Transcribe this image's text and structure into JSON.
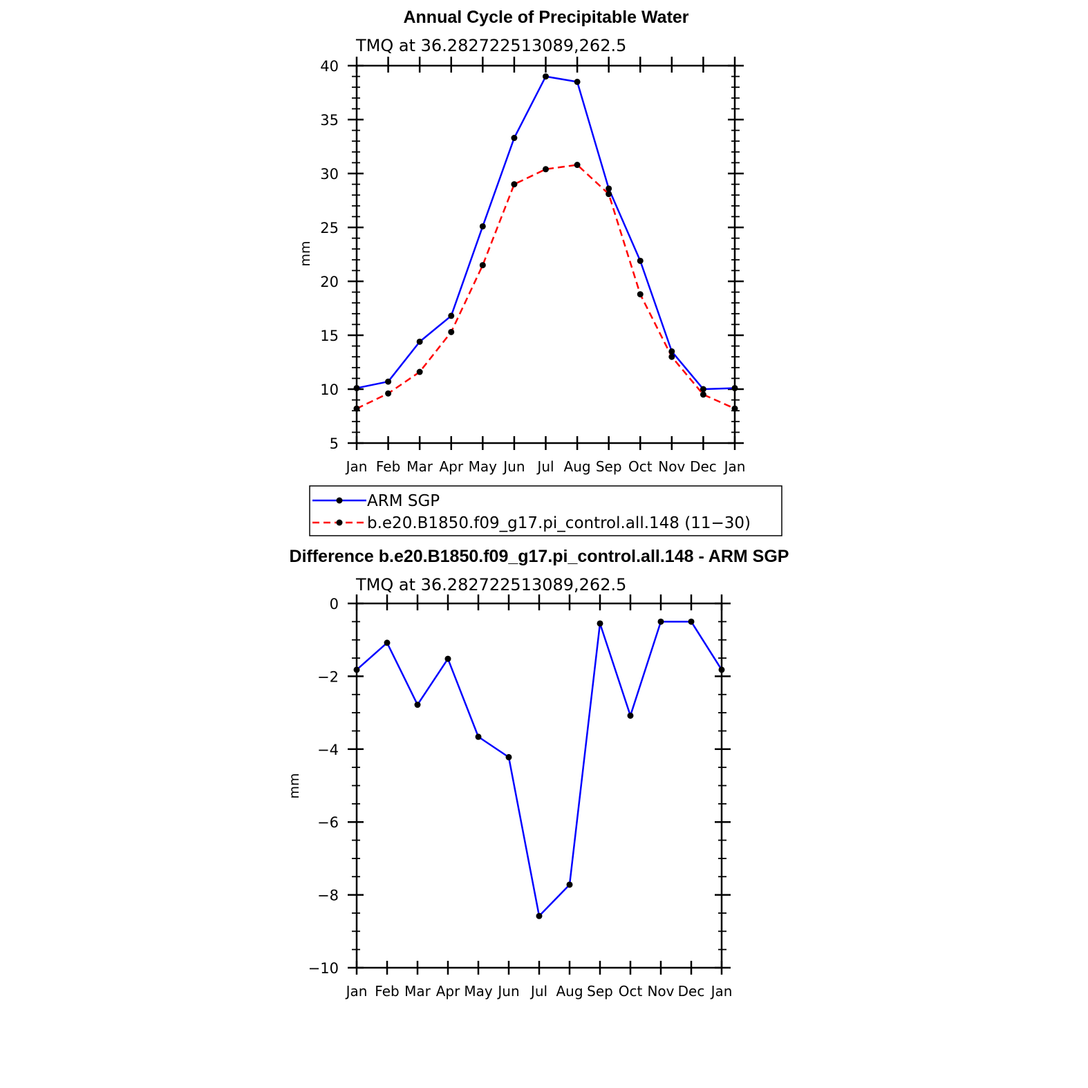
{
  "chart_data": [
    {
      "type": "line",
      "title": "Annual Cycle of Precipitable Water",
      "subtitle": "TMQ at 36.282722513089,262.5",
      "xlabel": "",
      "ylabel": "mm",
      "categories": [
        "Jan",
        "Feb",
        "Mar",
        "Apr",
        "May",
        "Jun",
        "Jul",
        "Aug",
        "Sep",
        "Oct",
        "Nov",
        "Dec",
        "Jan"
      ],
      "ylim": [
        5,
        40
      ],
      "yticks": [
        5,
        10,
        15,
        20,
        25,
        30,
        35,
        40
      ],
      "ytick_labels": [
        "5",
        "10",
        "15",
        "20",
        "25",
        "30",
        "35",
        "40"
      ],
      "series": [
        {
          "name": "ARM SGP",
          "color": "#0000ff",
          "dash": "solid",
          "values": [
            10.1,
            10.7,
            14.4,
            16.8,
            25.1,
            33.3,
            39.0,
            38.5,
            28.6,
            21.9,
            13.5,
            10.0,
            10.1
          ]
        },
        {
          "name": "b.e20.B1850.f09_g17.pi_control.all.148 (11−30)",
          "color": "#ff0000",
          "dash": "dashed",
          "values": [
            8.2,
            9.6,
            11.6,
            15.3,
            21.5,
            29.0,
            30.4,
            30.8,
            28.1,
            18.8,
            13.0,
            9.5,
            8.2
          ]
        }
      ],
      "legend": "bottom"
    },
    {
      "type": "line",
      "title": "Difference b.e20.B1850.f09_g17.pi_control.all.148 - ARM SGP",
      "subtitle": "TMQ at 36.282722513089,262.5",
      "xlabel": "",
      "ylabel": "mm",
      "categories": [
        "Jan",
        "Feb",
        "Mar",
        "Apr",
        "May",
        "Jun",
        "Jul",
        "Aug",
        "Sep",
        "Oct",
        "Nov",
        "Dec",
        "Jan"
      ],
      "ylim": [
        -10,
        0
      ],
      "yticks": [
        -10,
        -8,
        -6,
        -4,
        -2,
        0
      ],
      "ytick_labels": [
        "−10",
        "−8",
        "−6",
        "−4",
        "−2",
        "0"
      ],
      "series": [
        {
          "name": "Difference",
          "color": "#0000ff",
          "dash": "solid",
          "values": [
            -1.82,
            -1.08,
            -2.78,
            -1.52,
            -3.66,
            -4.22,
            -8.58,
            -7.72,
            -0.55,
            -3.08,
            -0.5,
            -0.5,
            -1.82
          ]
        }
      ]
    }
  ]
}
